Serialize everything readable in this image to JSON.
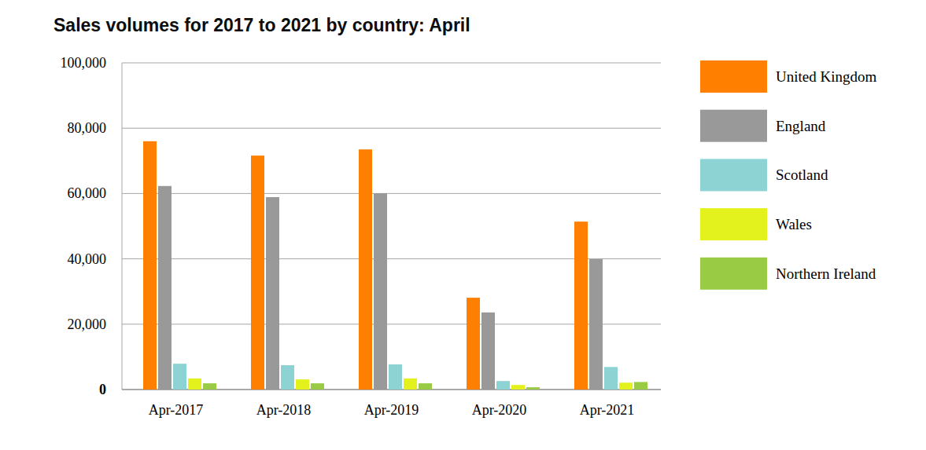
{
  "chart_data": {
    "type": "bar",
    "title": "Sales volumes for 2017 to 2021 by country: April",
    "categories": [
      "Apr-2017",
      "Apr-2018",
      "Apr-2019",
      "Apr-2020",
      "Apr-2021"
    ],
    "series": [
      {
        "name": "United Kingdom",
        "color": "#ff7f00",
        "values": [
          76000,
          71600,
          73500,
          28100,
          51400
        ]
      },
      {
        "name": "England",
        "color": "#999999",
        "values": [
          62300,
          58900,
          60100,
          23600,
          39900
        ]
      },
      {
        "name": "Scotland",
        "color": "#8ed3d4",
        "values": [
          7900,
          7450,
          7700,
          2600,
          6900
        ]
      },
      {
        "name": "Wales",
        "color": "#e3f21c",
        "values": [
          3400,
          3100,
          3400,
          1400,
          2100
        ]
      },
      {
        "name": "Northern Ireland",
        "color": "#99cc44",
        "values": [
          1900,
          1900,
          1900,
          700,
          2300
        ]
      }
    ],
    "ylim": [
      0,
      100000
    ],
    "yticks": [
      0,
      {
        "value": 20000,
        "label": "20,000"
      },
      {
        "value": 40000,
        "label": "40,000"
      },
      {
        "value": 60000,
        "label": "60,000"
      },
      {
        "value": 80000,
        "label": "80,000"
      },
      {
        "value": 100000,
        "label": "100,000"
      }
    ],
    "grid": true,
    "legend": "right"
  }
}
